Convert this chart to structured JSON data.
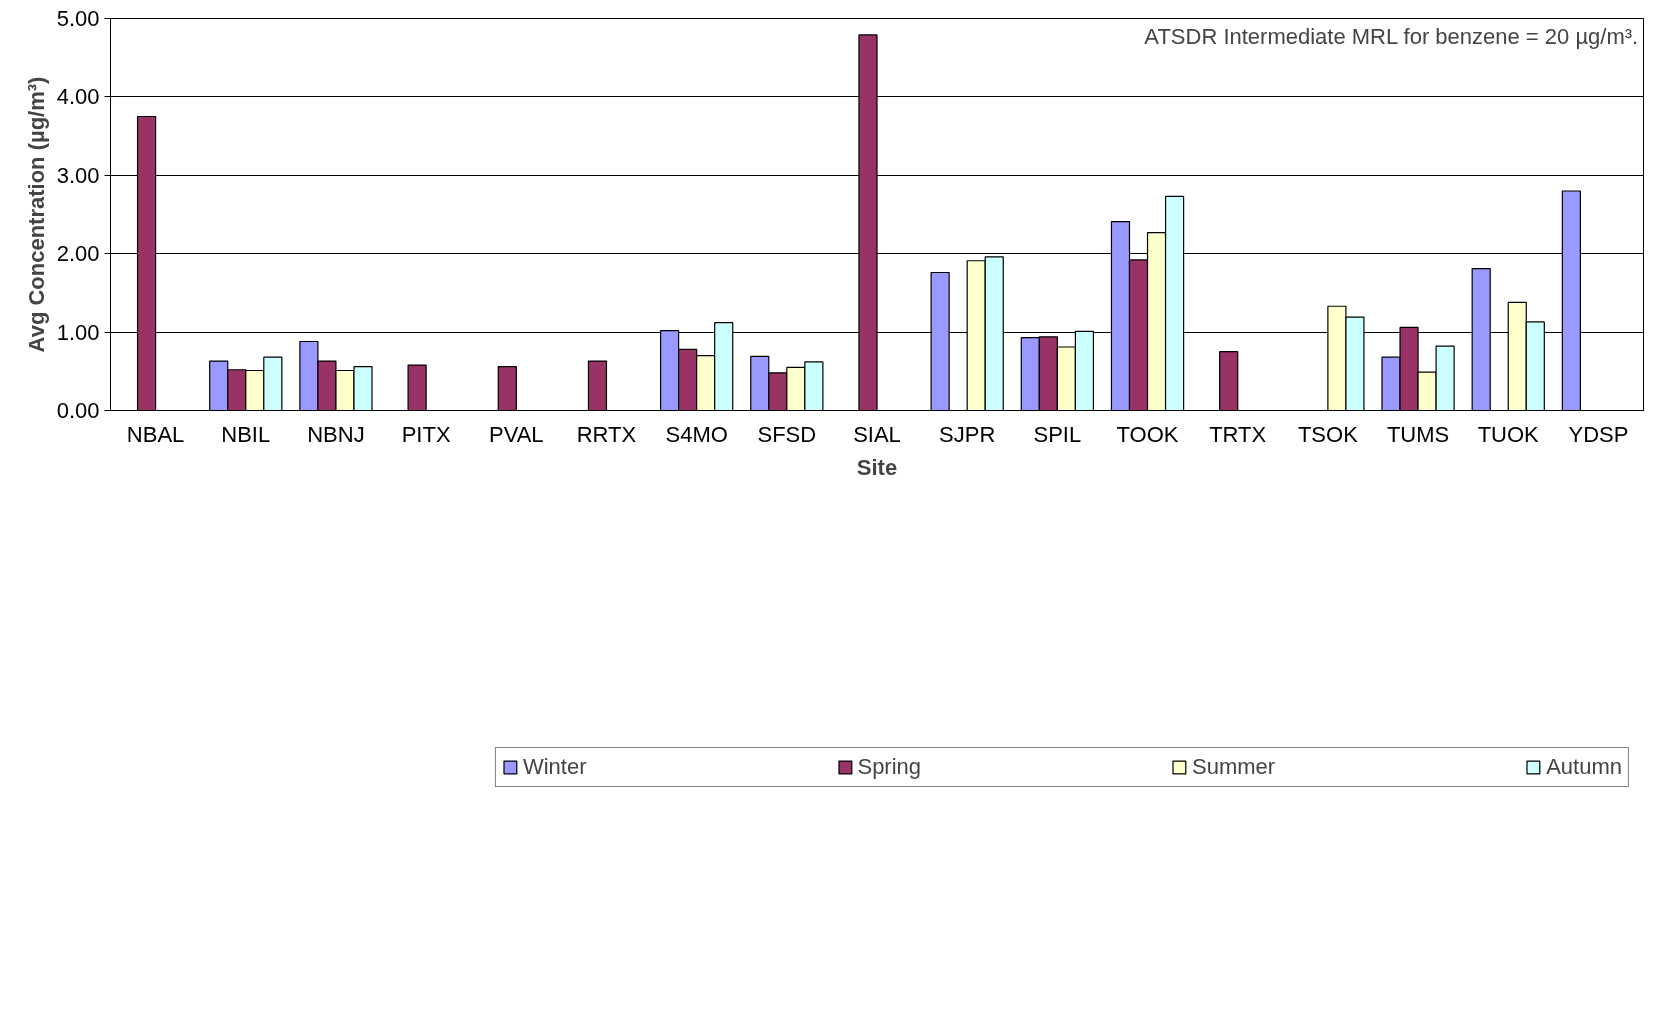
{
  "chart_data": {
    "type": "bar",
    "xlabel": "Site",
    "ylabel": "Avg Concentration (µg/m³)",
    "categories": [
      "NBAL",
      "NBIL",
      "NBNJ",
      "PITX",
      "PVAL",
      "RRTX",
      "S4MO",
      "SFSD",
      "SIAL",
      "SJPR",
      "SPIL",
      "TOOK",
      "TRTX",
      "TSOK",
      "TUMS",
      "TUOK",
      "YDSP"
    ],
    "series": [
      {
        "name": "Winter",
        "color": "#9999ff",
        "values": [
          null,
          0.63,
          0.88,
          null,
          null,
          null,
          1.02,
          0.69,
          null,
          1.76,
          0.93,
          2.41,
          null,
          null,
          0.68,
          1.81,
          2.8
        ]
      },
      {
        "name": "Spring",
        "color": "#993366",
        "values": [
          3.75,
          0.52,
          0.63,
          0.58,
          0.56,
          0.63,
          0.78,
          0.48,
          4.79,
          null,
          0.94,
          1.92,
          0.75,
          null,
          1.06,
          null,
          null
        ]
      },
      {
        "name": "Summer",
        "color": "#ffffcc",
        "values": [
          null,
          0.51,
          0.51,
          null,
          null,
          null,
          0.7,
          0.55,
          null,
          1.91,
          0.81,
          2.27,
          null,
          1.33,
          0.49,
          1.38,
          null
        ]
      },
      {
        "name": "Autumn",
        "color": "#ccffff",
        "values": [
          null,
          0.68,
          0.56,
          null,
          null,
          null,
          1.12,
          0.62,
          null,
          1.96,
          1.01,
          2.73,
          null,
          1.19,
          0.82,
          1.13,
          null
        ]
      }
    ],
    "ylim": [
      0,
      5
    ],
    "yticks": [
      {
        "value": 0,
        "label": "0.00"
      },
      {
        "value": 1,
        "label": "1.00"
      },
      {
        "value": 2,
        "label": "2.00"
      },
      {
        "value": 3,
        "label": "3.00"
      },
      {
        "value": 4,
        "label": "4.00"
      },
      {
        "value": 5,
        "label": "5.00"
      }
    ],
    "grid": "y",
    "legend": "bottom",
    "annotations": [
      "ATSDR Intermediate MRL for benzene = 20 µg/m³."
    ]
  }
}
